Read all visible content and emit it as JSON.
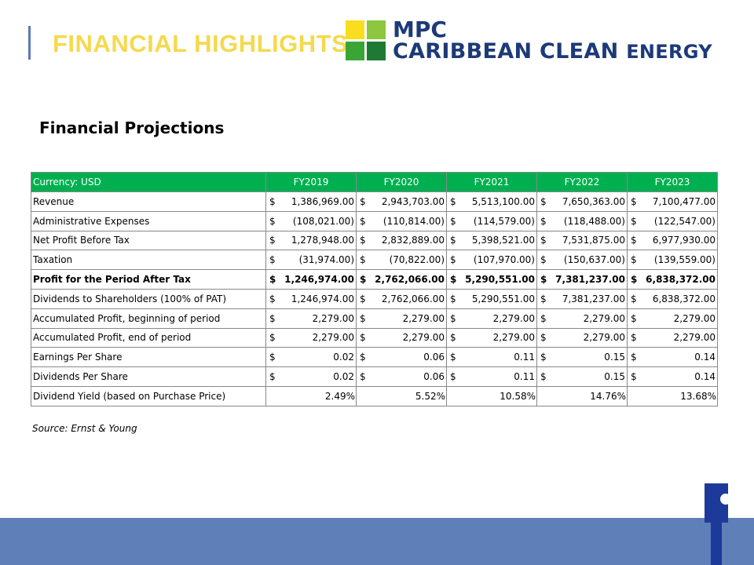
{
  "header": {
    "title": "FINANCIAL HIGHLIGHTS",
    "logo": {
      "line1": "MPC",
      "line2_main": "CARIBBEAN CLEAN",
      "line2_tail": "ENERGY",
      "colors": [
        "#f8de1e",
        "#8dc63f",
        "#3aa535",
        "#1e7a32"
      ]
    }
  },
  "section_title": "Financial Projections",
  "table": {
    "currency_label": "Currency: USD",
    "header_color": "#00b050",
    "years": [
      "FY2019",
      "FY2020",
      "FY2021",
      "FY2022",
      "FY2023"
    ],
    "rows": [
      {
        "label": "Revenue",
        "bold": false,
        "cells": [
          [
            "$",
            "1,386,969.00"
          ],
          [
            "$",
            "2,943,703.00"
          ],
          [
            "$",
            "5,513,100.00"
          ],
          [
            "$",
            "7,650,363.00"
          ],
          [
            "$",
            "7,100,477.00"
          ]
        ]
      },
      {
        "label": "Administrative Expenses",
        "bold": false,
        "cells": [
          [
            "$",
            "(108,021.00)"
          ],
          [
            "$",
            "(110,814.00)"
          ],
          [
            "$",
            "(114,579.00)"
          ],
          [
            "$",
            "(118,488.00)"
          ],
          [
            "$",
            "(122,547.00)"
          ]
        ]
      },
      {
        "label": "Net Profit Before Tax",
        "bold": false,
        "cells": [
          [
            "$",
            "1,278,948.00"
          ],
          [
            "$",
            "2,832,889.00"
          ],
          [
            "$",
            "5,398,521.00"
          ],
          [
            "$",
            "7,531,875.00"
          ],
          [
            "$",
            "6,977,930.00"
          ]
        ]
      },
      {
        "label": "Taxation",
        "bold": false,
        "cells": [
          [
            "$",
            "(31,974.00)"
          ],
          [
            "$",
            "(70,822.00)"
          ],
          [
            "$",
            "(107,970.00)"
          ],
          [
            "$",
            "(150,637.00)"
          ],
          [
            "$",
            "(139,559.00)"
          ]
        ]
      },
      {
        "label": "Profit for the Period After Tax",
        "bold": true,
        "cells": [
          [
            "$",
            "1,246,974.00"
          ],
          [
            "$",
            "2,762,066.00"
          ],
          [
            "$",
            "5,290,551.00"
          ],
          [
            "$",
            "7,381,237.00"
          ],
          [
            "$",
            "6,838,372.00"
          ]
        ]
      },
      {
        "label": "Dividends to Shareholders (100% of PAT)",
        "bold": false,
        "cells": [
          [
            "$",
            "1,246,974.00"
          ],
          [
            "$",
            "2,762,066.00"
          ],
          [
            "$",
            "5,290,551.00"
          ],
          [
            "$",
            "7,381,237.00"
          ],
          [
            "$",
            "6,838,372.00"
          ]
        ]
      },
      {
        "label": "Accumulated Profit, beginning of period",
        "bold": false,
        "cells": [
          [
            "$",
            "2,279.00"
          ],
          [
            "$",
            "2,279.00"
          ],
          [
            "$",
            "2,279.00"
          ],
          [
            "$",
            "2,279.00"
          ],
          [
            "$",
            "2,279.00"
          ]
        ]
      },
      {
        "label": "Accumulated Profit, end of period",
        "bold": false,
        "cells": [
          [
            "$",
            "2,279.00"
          ],
          [
            "$",
            "2,279.00"
          ],
          [
            "$",
            "2,279.00"
          ],
          [
            "$",
            "2,279.00"
          ],
          [
            "$",
            "2,279.00"
          ]
        ]
      },
      {
        "label": "Earnings Per Share",
        "bold": false,
        "cells": [
          [
            "$",
            "0.02"
          ],
          [
            "$",
            "0.06"
          ],
          [
            "$",
            "0.11"
          ],
          [
            "$",
            "0.15"
          ],
          [
            "$",
            "0.14"
          ]
        ]
      },
      {
        "label": "Dividends Per Share",
        "bold": false,
        "cells": [
          [
            "$",
            "0.02"
          ],
          [
            "$",
            "0.06"
          ],
          [
            "$",
            "0.11"
          ],
          [
            "$",
            "0.15"
          ],
          [
            "$",
            "0.14"
          ]
        ]
      },
      {
        "label": "Dividend Yield  (based on Purchase Price)",
        "bold": false,
        "cells": [
          [
            "",
            "2.49%"
          ],
          [
            "",
            "5.52%"
          ],
          [
            "",
            "10.58%"
          ],
          [
            "",
            "14.76%"
          ],
          [
            "",
            "13.68%"
          ]
        ]
      }
    ]
  },
  "source": "Source: Ernst & Young",
  "footer": {
    "color": "#5f7fb8",
    "icon": "pin-logo-icon"
  }
}
